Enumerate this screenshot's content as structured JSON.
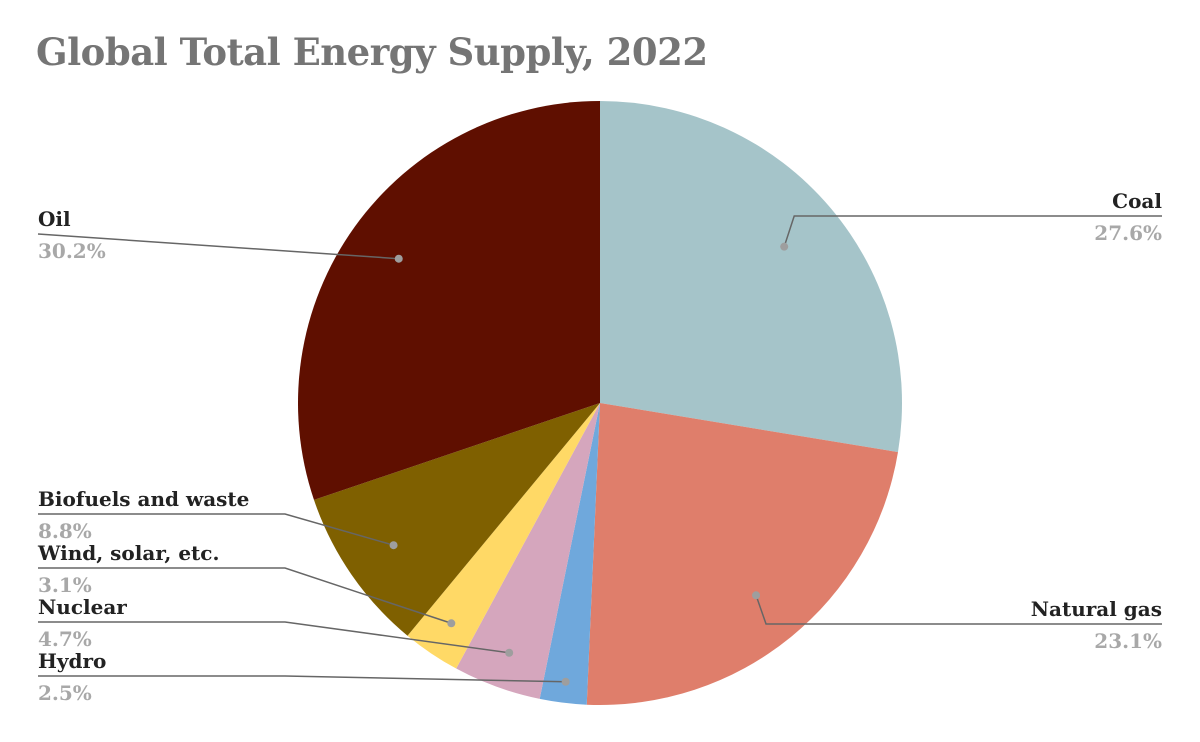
{
  "chart_data": {
    "type": "pie",
    "title": "Global Total Energy Supply, 2022",
    "start_angle_deg": 0,
    "direction": "clockwise",
    "slices": [
      {
        "label": "Coal",
        "value": 27.6,
        "display": "27.6%",
        "color": "#a5c4c9",
        "label_side": "right"
      },
      {
        "label": "Natural gas",
        "value": 23.1,
        "display": "23.1%",
        "color": "#df7e6b",
        "label_side": "right"
      },
      {
        "label": "Hydro",
        "value": 2.5,
        "display": "2.5%",
        "color": "#6fa8dc",
        "label_side": "left"
      },
      {
        "label": "Nuclear",
        "value": 4.7,
        "display": "4.7%",
        "color": "#d5a6bd",
        "label_side": "left"
      },
      {
        "label": "Wind, solar, etc.",
        "value": 3.1,
        "display": "3.1%",
        "color": "#ffd966",
        "label_side": "left"
      },
      {
        "label": "Biofuels and waste",
        "value": 8.8,
        "display": "8.8%",
        "color": "#7f6000",
        "label_side": "left"
      },
      {
        "label": "Oil",
        "value": 30.2,
        "display": "30.2%",
        "color": "#5f0f00",
        "label_side": "left"
      }
    ],
    "legend": "none"
  },
  "colors": {
    "title": "#757575",
    "label_name": "#222222",
    "label_percent": "#a8a8a8",
    "leader_line": "#666666",
    "leader_dot": "#9e9e9e"
  }
}
